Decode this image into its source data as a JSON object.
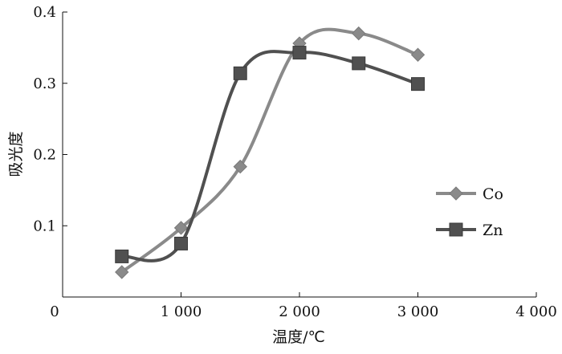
{
  "chart_data": {
    "type": "line",
    "xlabel": "温度/℃",
    "ylabel": "吸光度",
    "xlim": [
      0,
      4000
    ],
    "ylim": [
      0,
      0.4
    ],
    "x_ticks": [
      0,
      1000,
      2000,
      3000,
      4000
    ],
    "x_tick_labels": [
      "0",
      "1 000",
      "2 000",
      "3 000",
      "4 000"
    ],
    "y_ticks": [
      0.1,
      0.2,
      0.3,
      0.4
    ],
    "y_tick_labels": [
      "0.1",
      "0.2",
      "0.3",
      "0.4"
    ],
    "grid": false,
    "smooth": true,
    "legend_position": "right",
    "series": [
      {
        "name": "Co",
        "marker": "diamond",
        "color": "#8a8a8a",
        "x": [
          500,
          1000,
          1500,
          2000,
          2500,
          3000
        ],
        "y": [
          0.035,
          0.097,
          0.183,
          0.356,
          0.37,
          0.34
        ]
      },
      {
        "name": "Zn",
        "marker": "square",
        "color": "#505050",
        "x": [
          500,
          1000,
          1500,
          2000,
          2500,
          3000
        ],
        "y": [
          0.057,
          0.075,
          0.314,
          0.343,
          0.328,
          0.299
        ]
      }
    ]
  }
}
